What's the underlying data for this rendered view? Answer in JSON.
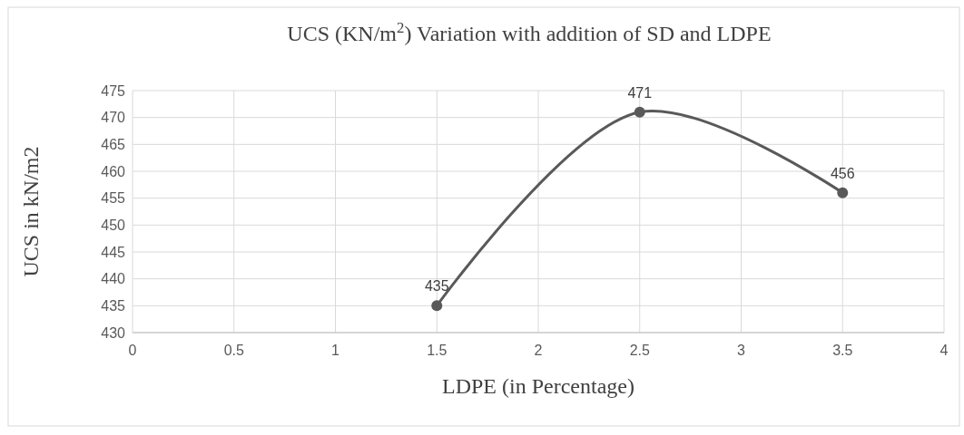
{
  "chart_data": {
    "type": "line",
    "title": "UCS (KN/m$^{2}$) Variation with addition of SD and LDPE",
    "xlabel": "LDPE (in Percentage)",
    "ylabel": "UCS in kN/m2",
    "x": [
      1.5,
      2.5,
      3.5
    ],
    "series": [
      {
        "color": "#595959",
        "values": [
          435,
          471,
          456
        ]
      }
    ],
    "xlim": [
      0,
      4
    ],
    "xticks": [
      0,
      0.5,
      1,
      1.5,
      2,
      2.5,
      3,
      3.5,
      4
    ],
    "ylim": [
      430,
      475
    ],
    "yticks": [
      430,
      435,
      440,
      445,
      450,
      455,
      460,
      465,
      470,
      475
    ],
    "grid": true,
    "marker": "circle",
    "data_labels": true
  }
}
